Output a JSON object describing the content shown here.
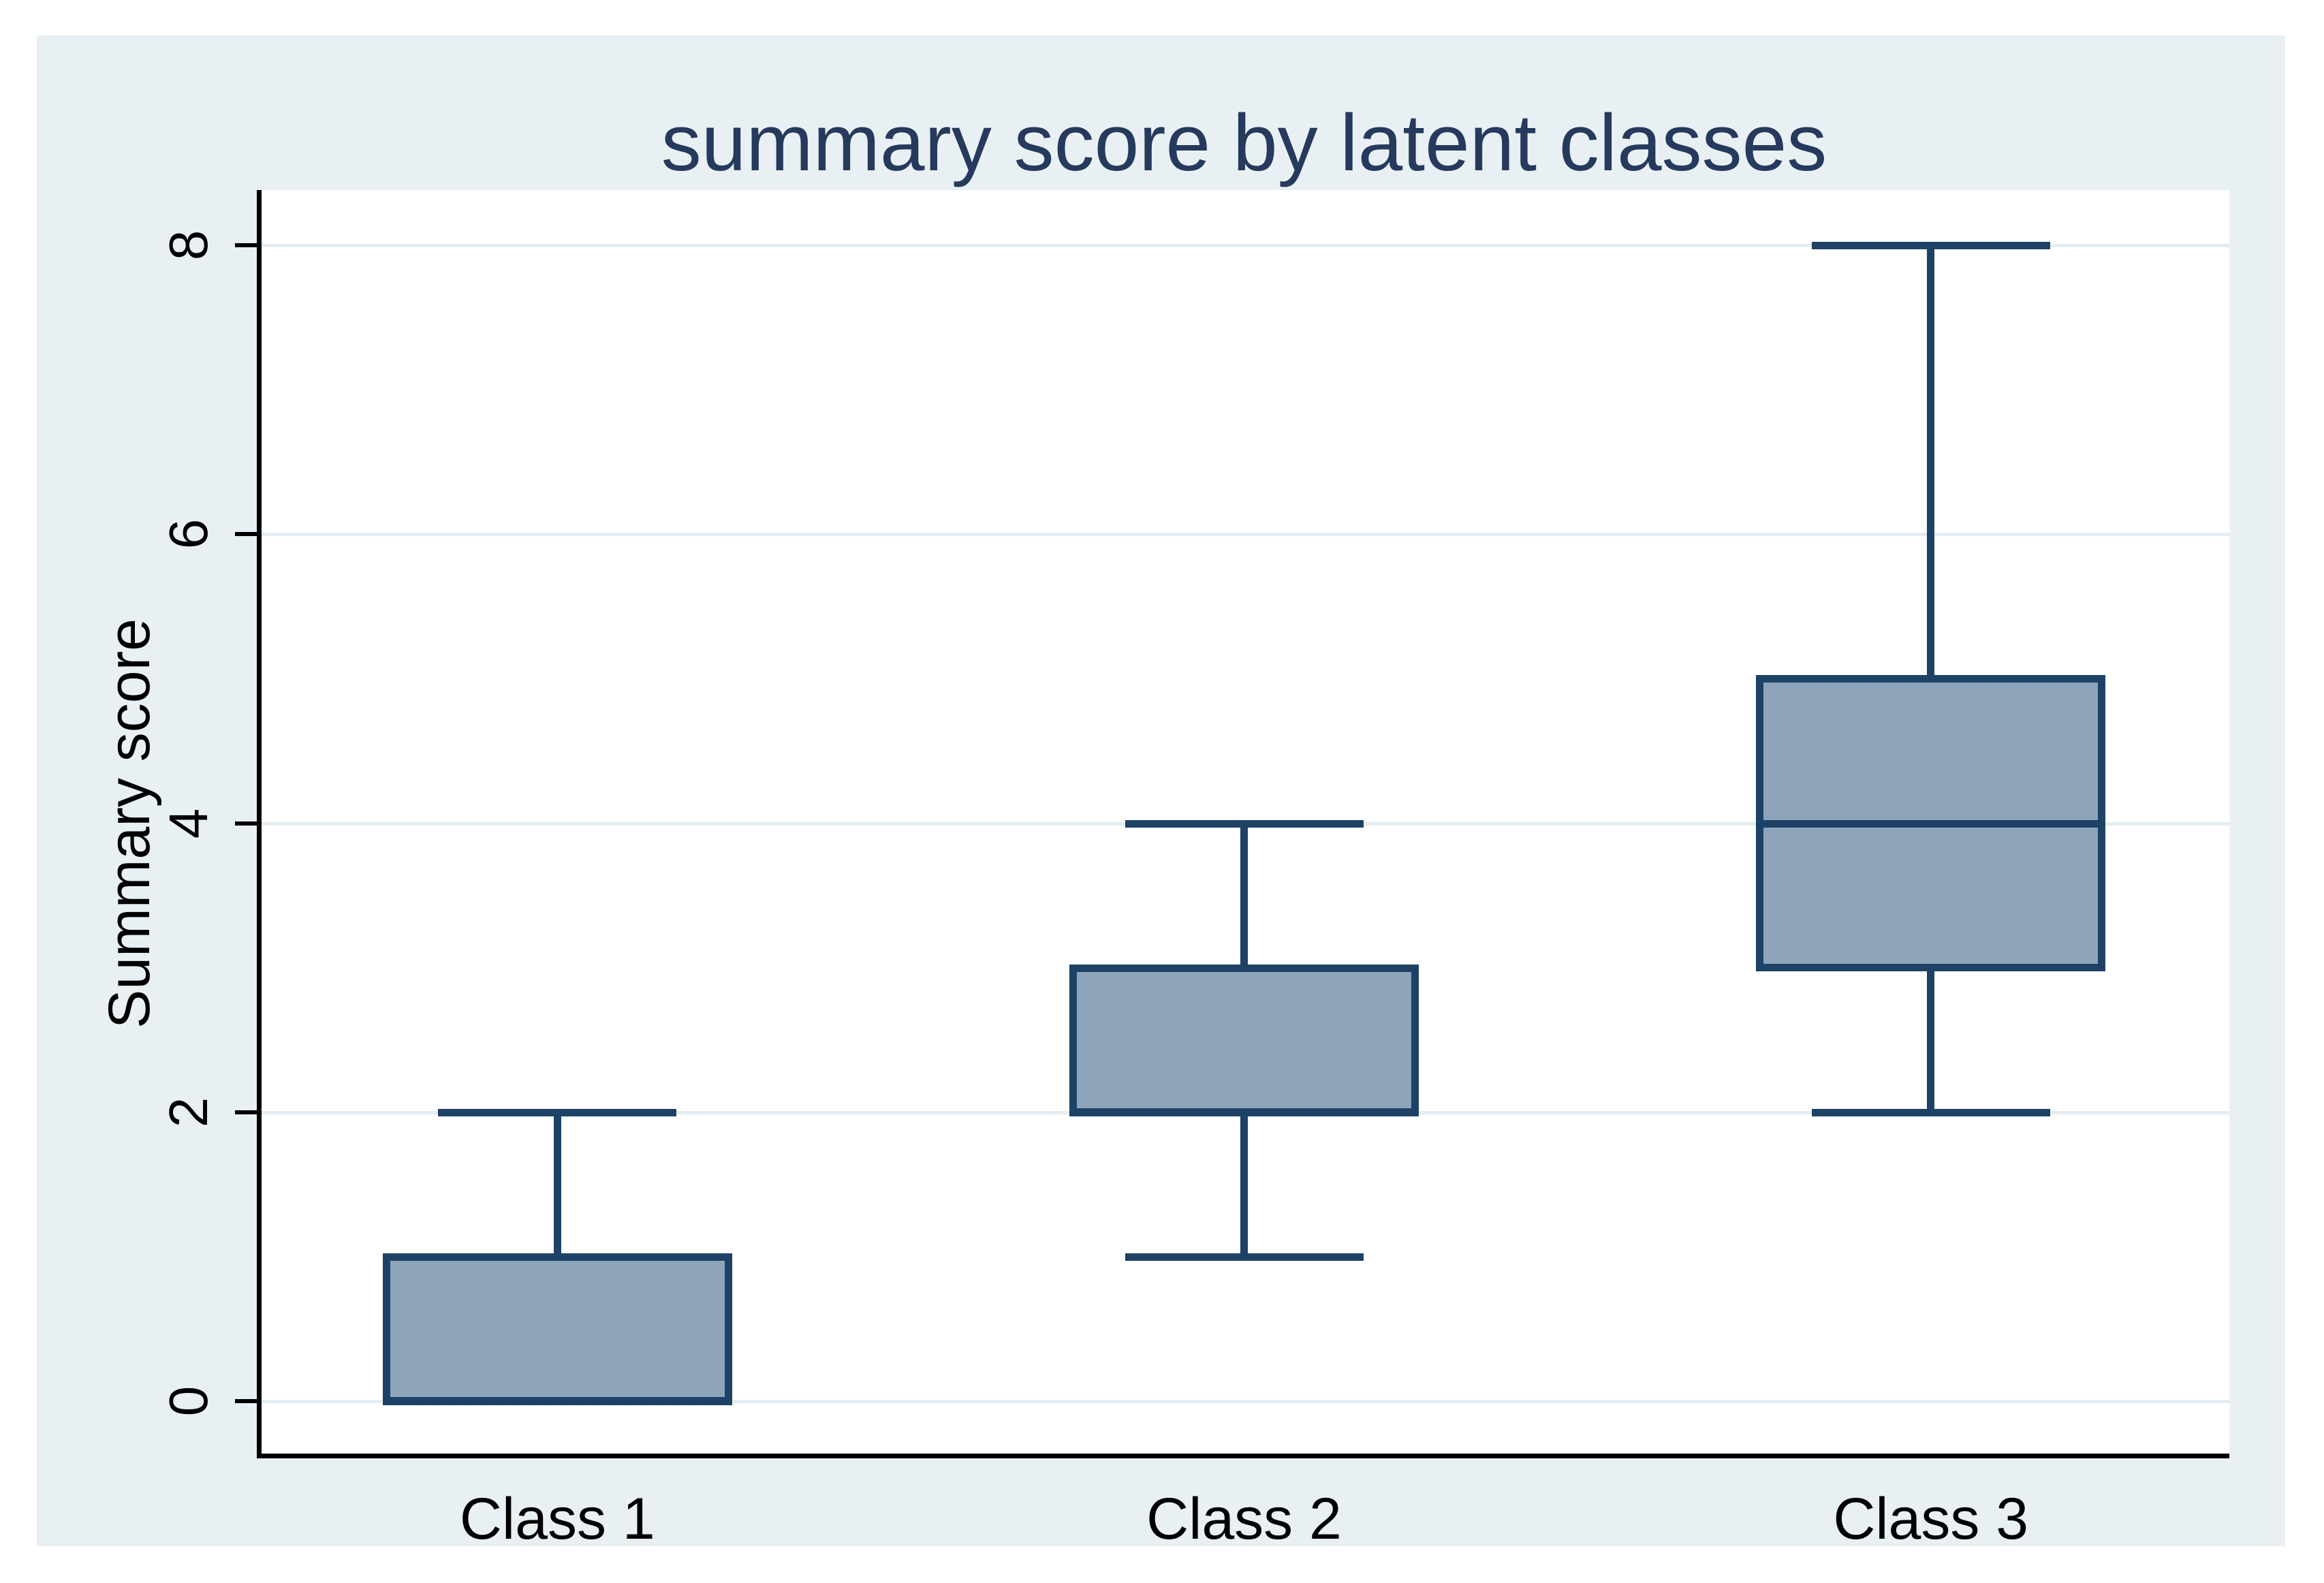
{
  "chart_data": {
    "type": "box",
    "title": "summary score by latent classes",
    "ylabel": "Summary score",
    "xlabel": "",
    "categories": [
      "Class 1",
      "Class 2",
      "Class 3"
    ],
    "yticks": [
      0,
      2,
      4,
      6,
      8
    ],
    "ylim": [
      -0.38,
      8.38
    ],
    "grid": true,
    "legend": "none",
    "series": [
      {
        "category": "Class 1",
        "whisker_low": 0,
        "q1": 0,
        "median": 0,
        "q3": 1,
        "whisker_high": 2
      },
      {
        "category": "Class 2",
        "whisker_low": 1,
        "q1": 2,
        "median": 2,
        "q3": 3,
        "whisker_high": 4
      },
      {
        "category": "Class 3",
        "whisker_low": 2,
        "q1": 3,
        "median": 4,
        "q3": 5,
        "whisker_high": 8
      }
    ],
    "colors": {
      "canvas_background": "#e9f0f4",
      "plot_background": "#ffffff",
      "gridline": "#e3edf2",
      "axis_line": "#000000",
      "tick_label": "#000000",
      "title": "#253a5c",
      "box_fill": "#8ea4ba",
      "box_border": "#1d4266"
    }
  }
}
